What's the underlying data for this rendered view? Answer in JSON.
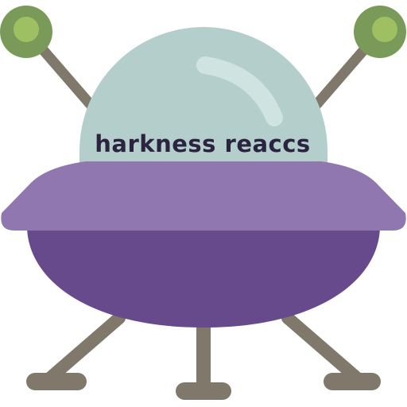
{
  "caption": {
    "text": "harkness reaccs"
  },
  "colors": {
    "background": "#ffffff",
    "antenna_rod": "#7f786b",
    "antenna_ball_outer": "#7a9a59",
    "antenna_ball_inner": "#9fbf63",
    "dome": "#b4cfcb",
    "dome_highlight": "#cfe3e0",
    "rim": "#9077b0",
    "hull": "#664a8b",
    "legs": "#7f786b",
    "caption": "#2b2340"
  },
  "icons": {
    "main": "ufo-icon"
  }
}
